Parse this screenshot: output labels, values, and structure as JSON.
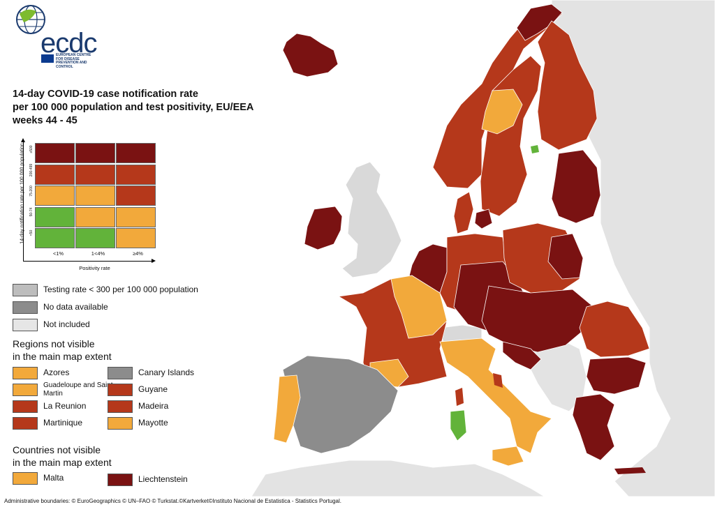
{
  "logo": {
    "text": "ecdc",
    "subtitle": "EUROPEAN CENTRE FOR DISEASE PREVENTION AND CONTROL"
  },
  "title": {
    "line1": "14-day COVID-19 case notification rate",
    "line2": "per 100 000 population and test positivity, EU/EEA",
    "line3": "weeks 44 - 45"
  },
  "matrix": {
    "y_axis_label": "14-day notification rate per 100 000 population",
    "x_axis_label": "Positivity rate",
    "x_ticks": [
      "<1%",
      "1<4%",
      "≥4%"
    ],
    "y_ticks": [
      "≥500",
      "200-499",
      "75-200",
      "50-74",
      "<50"
    ],
    "colors": [
      [
        "#7a1212",
        "#7a1212",
        "#7a1212"
      ],
      [
        "#b5381b",
        "#b5381b",
        "#b5381b"
      ],
      [
        "#f2a93b",
        "#f2a93b",
        "#b5381b"
      ],
      [
        "#62b33a",
        "#f2a93b",
        "#f2a93b"
      ],
      [
        "#62b33a",
        "#62b33a",
        "#f2a93b"
      ]
    ]
  },
  "legend": {
    "testing_rate": {
      "label": "Testing rate < 300 per 100 000 population",
      "color": "#bdbdbd"
    },
    "no_data": {
      "label": "No data available",
      "color": "#8c8c8c"
    },
    "not_included": {
      "label": "Not included",
      "color": "#e6e6e6"
    }
  },
  "regions_heading": {
    "line1": "Regions not visible",
    "line2": "in the main map extent"
  },
  "regions": [
    {
      "name": "Azores",
      "color": "#f2a93b"
    },
    {
      "name": "Canary Islands",
      "color": "#8c8c8c"
    },
    {
      "name": "Guadeloupe and Saint Martin",
      "color": "#f2a93b"
    },
    {
      "name": "Guyane",
      "color": "#b5381b"
    },
    {
      "name": "La Reunion",
      "color": "#b5381b"
    },
    {
      "name": "Madeira",
      "color": "#b5381b"
    },
    {
      "name": "Martinique",
      "color": "#b5381b"
    },
    {
      "name": "Mayotte",
      "color": "#f2a93b"
    }
  ],
  "countries_heading": {
    "line1": "Countries not visible",
    "line2": "in the main map extent"
  },
  "countries": [
    {
      "name": "Malta",
      "color": "#f2a93b"
    },
    {
      "name": "Liechtenstein",
      "color": "#7a1212"
    }
  ],
  "footer": "Administrative boundaries: © EuroGeographics © UN–FAO © Turkstat.©Kartverket©Instituto Nacional de Estatistica - Statistics Portugal.",
  "map_colors": {
    "dark_red": "#7a1212",
    "red": "#b5381b",
    "orange": "#f2a93b",
    "green": "#62b33a",
    "grey": "#8c8c8c",
    "light_grey": "#d9d9d9",
    "outside": "#e3e3e3"
  }
}
